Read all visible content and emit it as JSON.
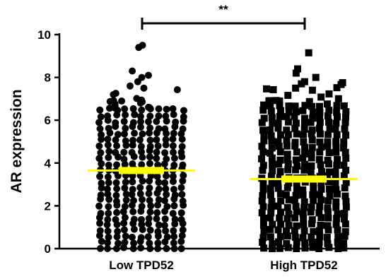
{
  "chart_data": {
    "type": "scatter",
    "subtype": "dot-plot",
    "ylabel": "AR expression",
    "ylim": [
      0,
      10
    ],
    "yticks": [
      0,
      2,
      4,
      6,
      8,
      10
    ],
    "categories": [
      "Low TPD52",
      "High TPD52"
    ],
    "series": [
      {
        "category": "Low TPD52",
        "marker": "circle",
        "mean": 3.65,
        "max": 9.5,
        "min": 0,
        "dense_max": 6.5,
        "outliers": [
          7.6,
          7.8,
          8.0,
          8.1,
          8.3,
          9.4,
          9.5
        ]
      },
      {
        "category": "High TPD52",
        "marker": "square",
        "mean": 3.25,
        "max": 9.15,
        "min": 0,
        "dense_max": 6.7,
        "outliers": [
          7.5,
          7.7,
          7.8,
          8.0,
          8.2,
          8.4,
          9.15
        ]
      }
    ],
    "mean_line_color": "#ffff00",
    "point_color": "#000000",
    "significance": {
      "between": [
        "Low TPD52",
        "High TPD52"
      ],
      "label": "**"
    }
  }
}
